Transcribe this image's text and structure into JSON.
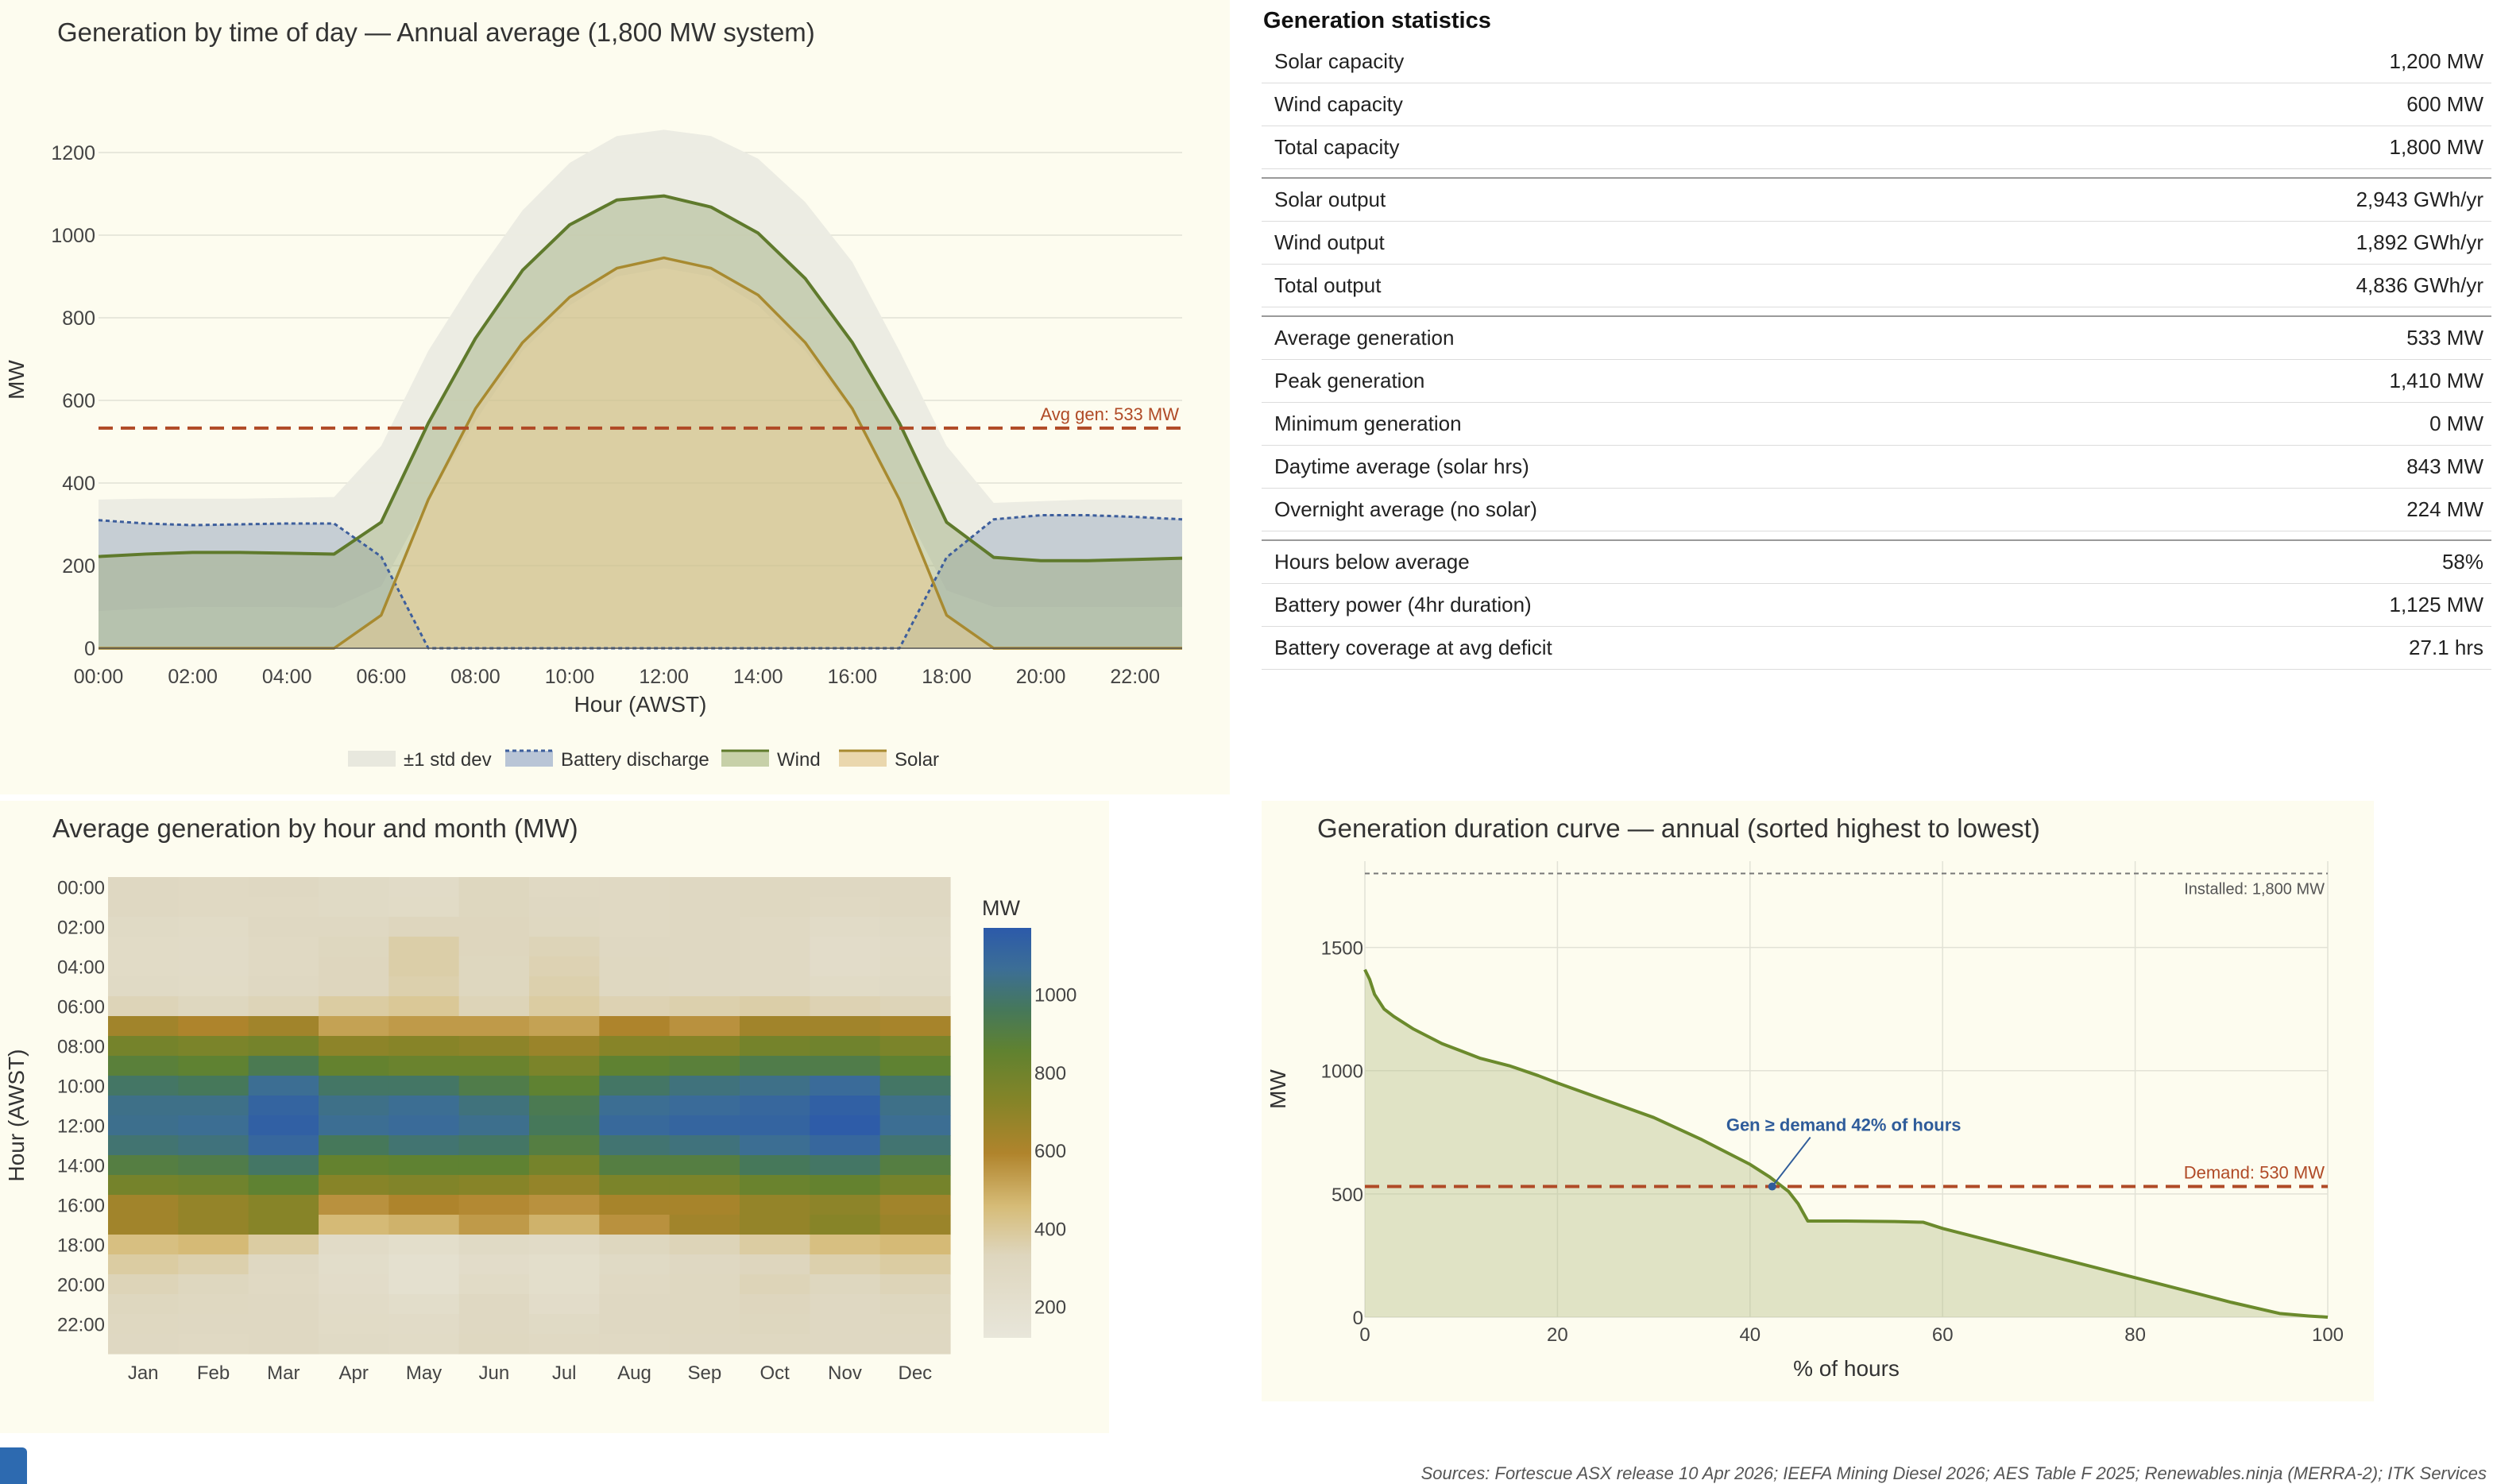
{
  "colors": {
    "panel_bg": "#fdfcef",
    "solar": "#a88a30",
    "wind": "#5f7a2c",
    "battery": "#3d5e9c",
    "band": "#ebebe2",
    "avg_line": "#b04a26",
    "duration": "#6b8a2c",
    "installed_line": "#777777"
  },
  "footer": "Sources: Fortescue ASX release 10 Apr 2026; IEEFA Mining Diesel 2026; AES Table F 2025; Renewables.ninja (MERRA-2); ITK Services",
  "stats": {
    "title": "Generation statistics",
    "rows": [
      {
        "label": "Solar capacity",
        "value": "1,200 MW"
      },
      {
        "label": "Wind capacity",
        "value": "600 MW"
      },
      {
        "label": "Total capacity",
        "value": "1,800 MW"
      },
      {
        "label": "Solar output",
        "value": "2,943 GWh/yr"
      },
      {
        "label": "Wind output",
        "value": "1,892 GWh/yr"
      },
      {
        "label": "Total output",
        "value": "4,836 GWh/yr"
      },
      {
        "label": "Average generation",
        "value": "533 MW"
      },
      {
        "label": "Peak generation",
        "value": "1,410 MW"
      },
      {
        "label": "Minimum generation",
        "value": "0 MW"
      },
      {
        "label": "Daytime average (solar hrs)",
        "value": "843 MW"
      },
      {
        "label": "Overnight average (no solar)",
        "value": "224 MW"
      },
      {
        "label": "Hours below average",
        "value": "58%"
      },
      {
        "label": "Battery power (4hr duration)",
        "value": "1,125 MW"
      },
      {
        "label": "Battery coverage at avg deficit",
        "value": "27.1 hrs"
      }
    ]
  },
  "chart_data": [
    {
      "type": "area",
      "title": "Generation by time of day — Annual average (1,800 MW system)",
      "xlabel": "Hour (AWST)",
      "ylabel": "MW",
      "ylim": [
        0,
        1300
      ],
      "xlim": [
        0,
        23
      ],
      "x_ticks": [
        "00:00",
        "02:00",
        "04:00",
        "06:00",
        "08:00",
        "10:00",
        "12:00",
        "14:00",
        "16:00",
        "18:00",
        "20:00",
        "22:00"
      ],
      "y_ticks": [
        0,
        200,
        400,
        600,
        800,
        1000,
        1200
      ],
      "legend": [
        "±1 std dev",
        "Battery discharge",
        "Wind",
        "Solar"
      ],
      "legend_position": "bottom",
      "annotation": "Avg gen: 533 MW",
      "avg_gen": 533,
      "x": [
        0,
        1,
        2,
        3,
        4,
        5,
        6,
        7,
        8,
        9,
        10,
        11,
        12,
        13,
        14,
        15,
        16,
        17,
        18,
        19,
        20,
        21,
        22,
        23
      ],
      "series": [
        {
          "name": "Solar",
          "values": [
            0,
            0,
            0,
            0,
            0,
            0,
            80,
            360,
            580,
            740,
            850,
            920,
            945,
            920,
            855,
            740,
            580,
            360,
            80,
            0,
            0,
            0,
            0,
            0
          ]
        },
        {
          "name": "Wind",
          "values": [
            222,
            228,
            232,
            232,
            230,
            228,
            305,
            545,
            750,
            915,
            1025,
            1085,
            1095,
            1068,
            1005,
            895,
            740,
            545,
            305,
            220,
            212,
            212,
            215,
            218
          ]
        },
        {
          "name": "Battery discharge",
          "values": [
            310,
            302,
            298,
            300,
            302,
            302,
            222,
            0,
            0,
            0,
            0,
            0,
            0,
            0,
            0,
            0,
            0,
            0,
            220,
            312,
            322,
            322,
            318,
            312
          ]
        },
        {
          "name": "±1 std dev upper",
          "values": [
            360,
            362,
            362,
            362,
            364,
            366,
            490,
            720,
            900,
            1060,
            1175,
            1240,
            1255,
            1240,
            1185,
            1080,
            935,
            720,
            490,
            352,
            356,
            360,
            360,
            360
          ]
        },
        {
          "name": "±1 std dev lower",
          "values": [
            90,
            96,
            100,
            100,
            100,
            98,
            150,
            360,
            550,
            720,
            830,
            900,
            920,
            900,
            830,
            720,
            570,
            360,
            140,
            100,
            100,
            100,
            100,
            100
          ]
        }
      ]
    },
    {
      "type": "heatmap",
      "title": "Average generation by hour and month (MW)",
      "xlabel": "",
      "ylabel": "Hour (AWST)",
      "colorbar_label": "MW",
      "colorbar_ticks": [
        200,
        400,
        600,
        800,
        1000
      ],
      "colorbar_range": [
        120,
        1170
      ],
      "x_categories": [
        "Jan",
        "Feb",
        "Mar",
        "Apr",
        "May",
        "Jun",
        "Jul",
        "Aug",
        "Sep",
        "Oct",
        "Nov",
        "Dec"
      ],
      "y_tick_labels": [
        "00:00",
        "02:00",
        "04:00",
        "06:00",
        "08:00",
        "10:00",
        "12:00",
        "14:00",
        "16:00",
        "18:00",
        "20:00",
        "22:00"
      ],
      "rows": [
        [
          300,
          290,
          300,
          280,
          260,
          320,
          290,
          290,
          300,
          310,
          300,
          300
        ],
        [
          300,
          290,
          295,
          280,
          270,
          320,
          300,
          290,
          300,
          310,
          290,
          300
        ],
        [
          280,
          270,
          300,
          300,
          330,
          330,
          310,
          290,
          300,
          290,
          260,
          280
        ],
        [
          270,
          260,
          290,
          320,
          370,
          330,
          340,
          300,
          300,
          290,
          250,
          260
        ],
        [
          270,
          260,
          290,
          330,
          370,
          320,
          350,
          310,
          300,
          290,
          250,
          270
        ],
        [
          280,
          270,
          300,
          330,
          360,
          320,
          360,
          310,
          300,
          290,
          270,
          280
        ],
        [
          340,
          320,
          340,
          380,
          400,
          340,
          380,
          350,
          360,
          370,
          350,
          340
        ],
        [
          640,
          600,
          640,
          520,
          540,
          540,
          520,
          600,
          560,
          640,
          640,
          620
        ],
        [
          780,
          760,
          780,
          700,
          720,
          700,
          660,
          720,
          720,
          780,
          800,
          760
        ],
        [
          880,
          860,
          940,
          840,
          820,
          820,
          760,
          860,
          880,
          920,
          920,
          860
        ],
        [
          980,
          960,
          1060,
          980,
          980,
          920,
          860,
          980,
          1020,
          1040,
          1080,
          980
        ],
        [
          1040,
          1040,
          1120,
          1040,
          1060,
          1020,
          940,
          1060,
          1080,
          1100,
          1140,
          1040
        ],
        [
          1050,
          1060,
          1140,
          1060,
          1080,
          1050,
          960,
          1090,
          1110,
          1120,
          1160,
          1060
        ],
        [
          1000,
          1020,
          1100,
          960,
          1000,
          980,
          900,
          1000,
          1020,
          1060,
          1100,
          1000
        ],
        [
          900,
          920,
          980,
          840,
          860,
          860,
          780,
          900,
          900,
          960,
          980,
          900
        ],
        [
          780,
          800,
          860,
          720,
          740,
          720,
          680,
          760,
          760,
          820,
          840,
          780
        ],
        [
          640,
          680,
          720,
          560,
          600,
          580,
          560,
          620,
          620,
          680,
          700,
          640
        ],
        [
          640,
          680,
          720,
          460,
          480,
          540,
          480,
          560,
          640,
          680,
          720,
          660
        ],
        [
          440,
          460,
          380,
          260,
          230,
          280,
          260,
          320,
          340,
          380,
          440,
          460
        ],
        [
          380,
          360,
          300,
          240,
          200,
          250,
          230,
          280,
          300,
          330,
          360,
          380
        ],
        [
          340,
          320,
          290,
          250,
          200,
          270,
          230,
          290,
          310,
          340,
          320,
          340
        ],
        [
          320,
          310,
          300,
          260,
          240,
          300,
          250,
          300,
          310,
          330,
          300,
          320
        ],
        [
          310,
          300,
          300,
          270,
          260,
          300,
          280,
          300,
          310,
          320,
          300,
          310
        ],
        [
          300,
          290,
          300,
          280,
          270,
          310,
          290,
          290,
          300,
          310,
          300,
          300
        ]
      ]
    },
    {
      "type": "area",
      "title": "Generation duration curve — annual (sorted highest to lowest)",
      "xlabel": "% of hours",
      "ylabel": "MW",
      "xlim": [
        0,
        100
      ],
      "ylim": [
        0,
        1850
      ],
      "x_ticks": [
        0,
        20,
        40,
        60,
        80,
        100
      ],
      "y_ticks": [
        0,
        500,
        1000,
        1500
      ],
      "installed": 1800,
      "installed_label": "Installed: 1,800 MW",
      "demand": 530,
      "demand_label": "Demand: 530 MW",
      "crossing_label": "Gen ≥ demand 42% of hours",
      "crossing_x": 42.3,
      "x": [
        0,
        0.5,
        1,
        2,
        3,
        5,
        8,
        10,
        12,
        15,
        18,
        20,
        25,
        30,
        35,
        40,
        42,
        43,
        44,
        45,
        46,
        50,
        55,
        58,
        60,
        65,
        70,
        75,
        80,
        85,
        90,
        95,
        98,
        100
      ],
      "values": [
        1410,
        1370,
        1310,
        1250,
        1220,
        1170,
        1110,
        1080,
        1050,
        1020,
        980,
        950,
        880,
        810,
        720,
        620,
        570,
        540,
        510,
        460,
        390,
        390,
        388,
        385,
        360,
        310,
        260,
        210,
        160,
        110,
        60,
        15,
        5,
        0
      ]
    }
  ]
}
